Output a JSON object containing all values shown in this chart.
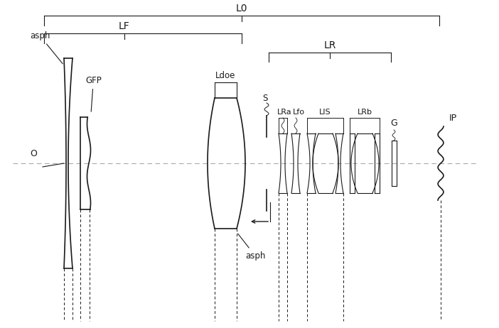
{
  "bg_color": "#ffffff",
  "line_color": "#1a1a1a",
  "axis_color": "#aaaaaa",
  "figsize": [
    7.02,
    4.62
  ],
  "dpi": 100,
  "oy": 0.5,
  "xlim": [
    0,
    702
  ],
  "ylim": [
    0,
    462
  ]
}
